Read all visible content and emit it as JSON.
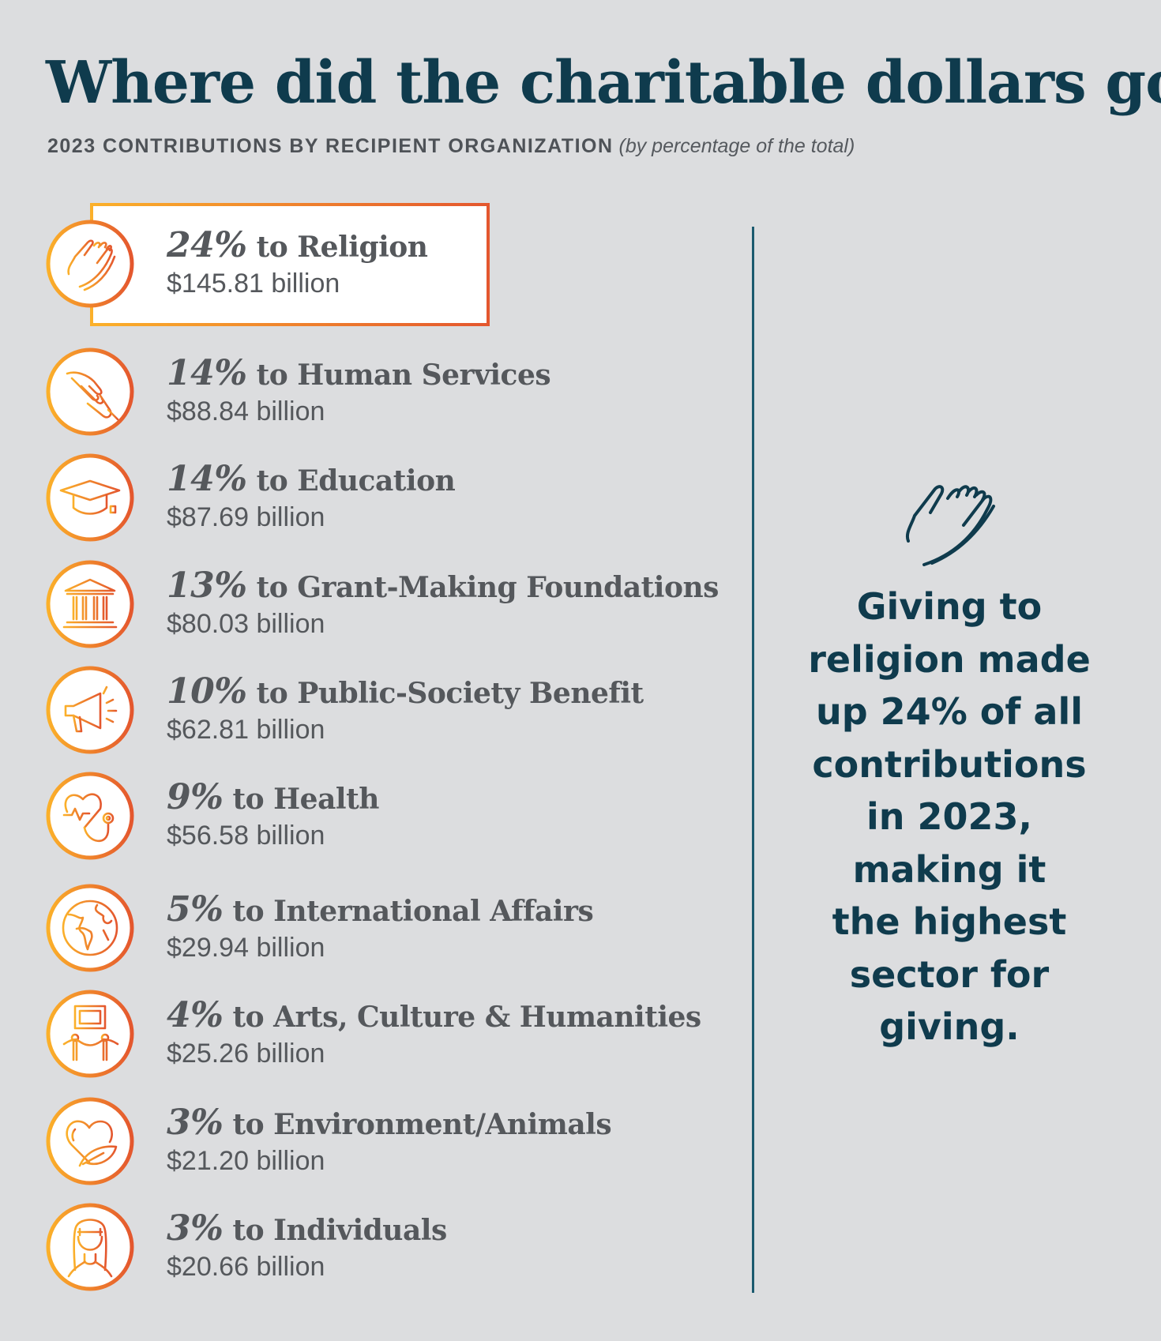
{
  "title": "Where did the charitable dollars go?",
  "subtitle": {
    "main": "2023 CONTRIBUTIONS BY RECIPIENT ORGANIZATION",
    "note": "(by percentage of the total)"
  },
  "items": [
    {
      "pct": "24%",
      "label": "to Religion",
      "amount": "$145.81 billion",
      "icon": "praying-hands-icon",
      "highlight": true
    },
    {
      "pct": "14%",
      "label": "to Human Services",
      "amount": "$88.84 billion",
      "icon": "helping-hands-icon"
    },
    {
      "pct": "14%",
      "label": "to Education",
      "amount": "$87.69 billion",
      "icon": "graduation-cap-icon"
    },
    {
      "pct": "13%",
      "label": "to Grant-Making Foundations",
      "amount": "$80.03 billion",
      "icon": "institution-icon"
    },
    {
      "pct": "10%",
      "label": "to Public-Society Benefit",
      "amount": "$62.81 billion",
      "icon": "megaphone-icon"
    },
    {
      "pct": "9%",
      "label": "to Health",
      "amount": "$56.58 billion",
      "icon": "stethoscope-icon"
    },
    {
      "pct": "5%",
      "label": "to International Affairs",
      "amount": "$29.94 billion",
      "icon": "globe-icon"
    },
    {
      "pct": "4%",
      "label": "to Arts, Culture & Humanities",
      "amount": "$25.26 billion",
      "icon": "museum-frame-icon"
    },
    {
      "pct": "3%",
      "label": "to Environment/Animals",
      "amount": "$21.20 billion",
      "icon": "heart-leaf-icon"
    },
    {
      "pct": "3%",
      "label": "to Individuals",
      "amount": "$20.66 billion",
      "icon": "person-icon"
    }
  ],
  "callout": {
    "lines": [
      "Giving to",
      "religion made",
      "up 24% of all",
      "contributions",
      "in 2023,",
      "making it",
      "the highest",
      "sector for",
      "giving."
    ],
    "icon": "praying-hands-icon"
  },
  "colors": {
    "title": "#0f3b4d",
    "text": "#55585c",
    "gradient_start": "#fbb02a",
    "gradient_end": "#e4572e",
    "divider": "#1b5a6f",
    "background": "#dcdddf"
  }
}
